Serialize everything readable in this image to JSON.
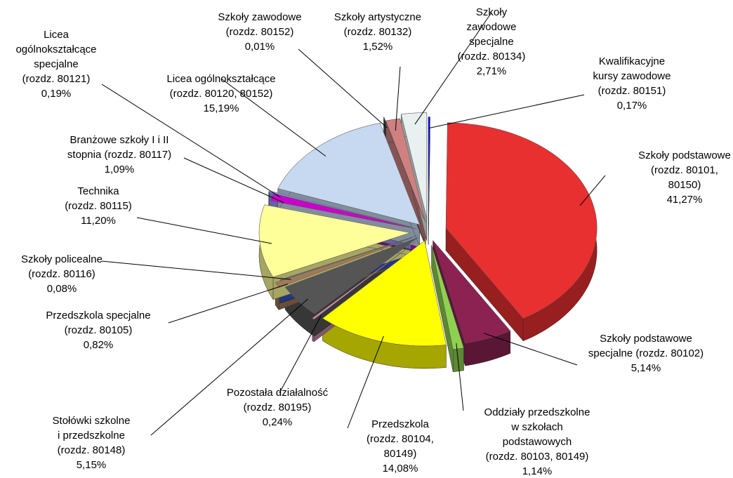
{
  "chart_data": {
    "type": "pie",
    "categories": [
      [
        "Kwalifikacyjne",
        "kursy zawodowe",
        "(rozdz. 80151)"
      ],
      [
        "Szkoły podstawowe",
        "(rozdz. 80101,",
        "80150)"
      ],
      [
        "Szkoły podstawowe",
        "specjalne (rozdz. 80102)"
      ],
      [
        "Oddziały przedszkolne",
        "w szkołach",
        "podstawowych",
        "(rozdz. 80103, 80149)"
      ],
      [
        "Przedszkola",
        "(rozdz. 80104,",
        "80149)"
      ],
      [
        "Pozostała działalność",
        "(rozdz. 80195)"
      ],
      [
        "Stołówki szkolne",
        "i przedszkolne",
        "(rozdz. 80148)"
      ],
      [
        "Przedszkola specjalne",
        "(rozdz. 80105)"
      ],
      [
        "Szkoły policealne",
        "(rozdz. 80116)"
      ],
      [
        "Technika",
        "(rozdz. 80115)"
      ],
      [
        "Branżowe szkoły I i II",
        "stopnia (rozdz. 80117)"
      ],
      [
        "Licea",
        "ogólnokształcące",
        "specjalne",
        "(rozdz. 80121)"
      ],
      [
        "Licea ogólnokształcące",
        "(rozdz. 80120, 80152)"
      ],
      [
        "Szkoły zawodowe",
        "(rozdz. 80152)"
      ],
      [
        "Szkoły artystyczne",
        "(rozdz. 80132)"
      ],
      [
        "Szkoły",
        "zawodowe",
        "specjalne",
        "(rozdz. 80134)"
      ]
    ],
    "values": [
      0.17,
      41.27,
      5.14,
      1.14,
      14.08,
      0.24,
      5.15,
      0.82,
      0.08,
      11.2,
      1.09,
      0.19,
      15.19,
      0.01,
      1.52,
      2.71
    ],
    "value_labels": [
      "0,17%",
      "41,27%",
      "5,14%",
      "1,14%",
      "14,08%",
      "0,24%",
      "5,15%",
      "0,82%",
      "0,08%",
      "11,20%",
      "1,09%",
      "0,19%",
      "15,19%",
      "0,01%",
      "1,52%",
      "2,71%"
    ],
    "colors": [
      "#0000ff",
      "#e83030",
      "#8b2252",
      "#8fd14f",
      "#ffff00",
      "#d98cb3",
      "#555555",
      "#a0785a",
      "#3355cc",
      "#ffff99",
      "#cc00cc",
      "#9999ff",
      "#c6d9f1",
      "#444444",
      "#d08080",
      "#e8f0f0"
    ]
  }
}
